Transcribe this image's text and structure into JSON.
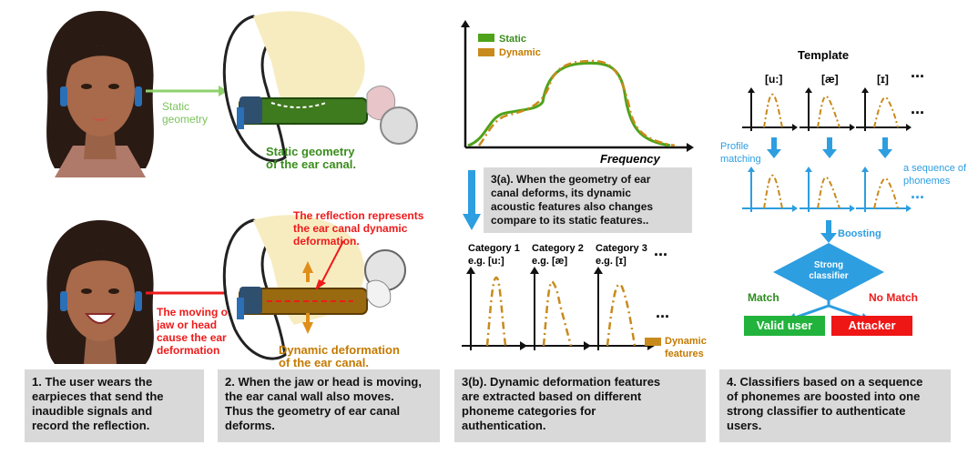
{
  "panel1": {
    "static_label": "Static\ngeometry",
    "static_geometry_title": "Static geometry\nof the ear canal.",
    "dynamic_reflection": "The reflection represents\nthe ear canal dynamic\ndeformation.",
    "moving_label": "The moving of\njaw or head\ncause the ear\ndeformation",
    "dynamic_title": "Dynamic deformation\nof the ear canal."
  },
  "captions": {
    "c1": "1. The user wears the\nearpieces that send the\ninaudible signals and\nrecord the reflection.",
    "c2": "2. When the jaw or head is moving,\nthe ear canal wall also moves.\nThus the geometry of ear canal\ndeforms.",
    "c3a": "3(a). When the geometry of ear\ncanal deforms, its dynamic\nacoustic features also changes\ncompare to its static features..",
    "c3b": "3(b). Dynamic deformation features\nare extracted based on different\nphoneme categories for\nauthentication.",
    "c4": "4. Classifiers based on a sequence\nof phonemes are boosted into one\nstrong classifier to authenticate\nusers."
  },
  "freq_chart": {
    "legend": [
      "Static",
      "Dynamic"
    ],
    "xlabel": "Frequency",
    "colors": {
      "static": "#4ea31a",
      "dynamic": "#c98a1c"
    }
  },
  "categories": [
    {
      "name": "Category 1",
      "eg": "e.g.  [u:]"
    },
    {
      "name": "Category 2",
      "eg": "e.g.  [æ]"
    },
    {
      "name": "Category 3",
      "eg": "e.g.  [ɪ]"
    }
  ],
  "ellipsis": "...",
  "dynamic_features_label": "Dynamic\nfeatures",
  "template": {
    "title": "Template",
    "phonemes": [
      "[u:]",
      "[æ]",
      "[ɪ]"
    ],
    "profile_matching": "Profile\nmatching",
    "sequence_label": "a sequence of\nphonemes",
    "boosting": "Boosting",
    "strong_classifier": "Strong\nclassifier",
    "match": "Match",
    "no_match": "No Match",
    "valid_user": "Valid user",
    "attacker": "Attacker"
  }
}
